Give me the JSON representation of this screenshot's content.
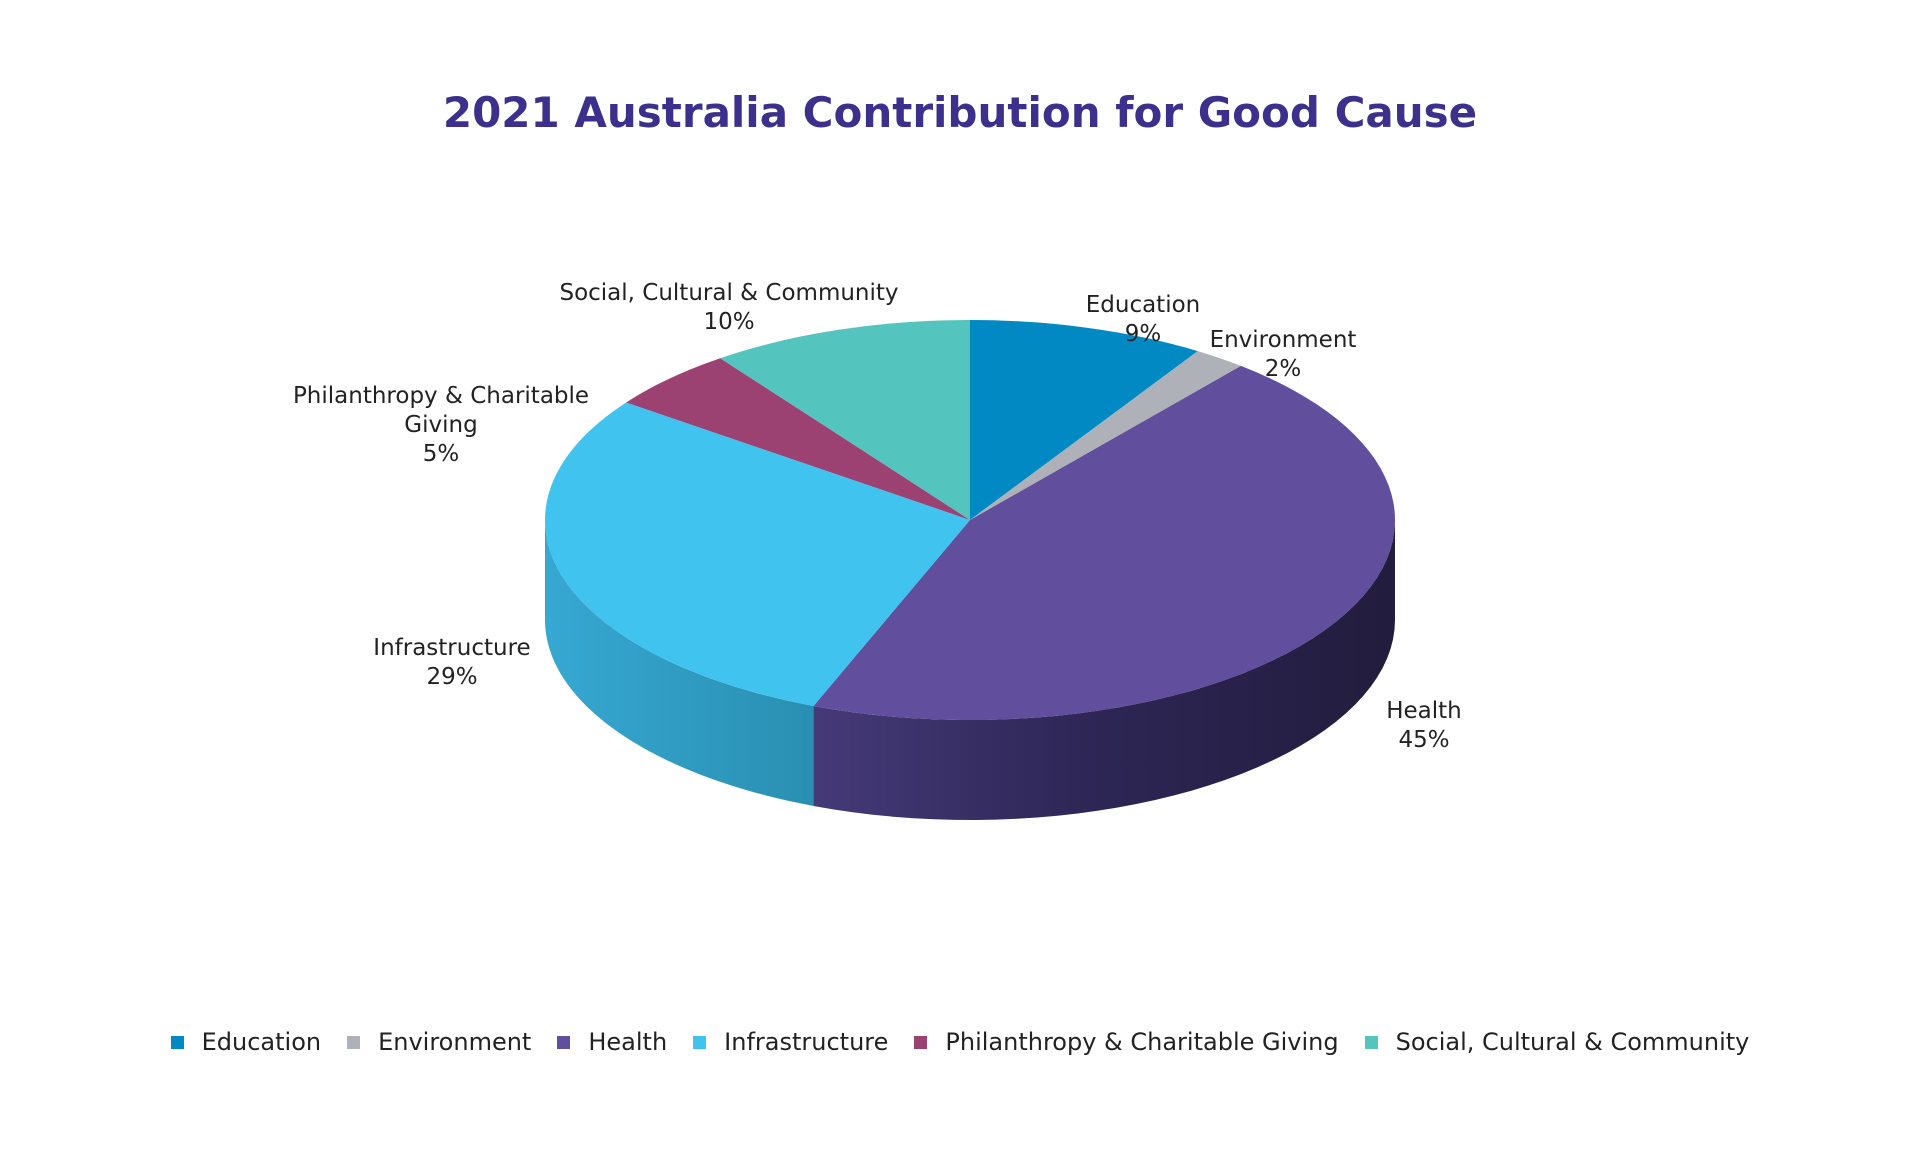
{
  "chart_data": {
    "type": "pie",
    "title": "2021 Australia Contribution for Good Cause",
    "legend_position": "bottom",
    "categories": [
      "Education",
      "Environment",
      "Health",
      "Infrastructure",
      "Philanthropy & Charitable Giving",
      "Social, Cultural & Community"
    ],
    "values": [
      9,
      2,
      45,
      29,
      5,
      10
    ],
    "value_labels": [
      "9%",
      "2%",
      "45%",
      "29%",
      "5%",
      "10%"
    ],
    "data_label_names": [
      "Education",
      "Environment",
      "Health",
      "Infrastructure",
      "Philanthropy & Charitable",
      "Social, Cultural & Community"
    ],
    "data_label_names_line2": [
      "",
      "",
      "",
      "",
      "Giving",
      ""
    ],
    "colors": [
      "#0189c4",
      "#aeb1b7",
      "#614e9c",
      "#40c3ef",
      "#9c4272",
      "#54c4bf"
    ],
    "legend": [
      "Education",
      "Environment",
      "Health",
      "Infrastructure",
      "Philanthropy & Charitable Giving",
      "Social, Cultural & Community"
    ]
  }
}
